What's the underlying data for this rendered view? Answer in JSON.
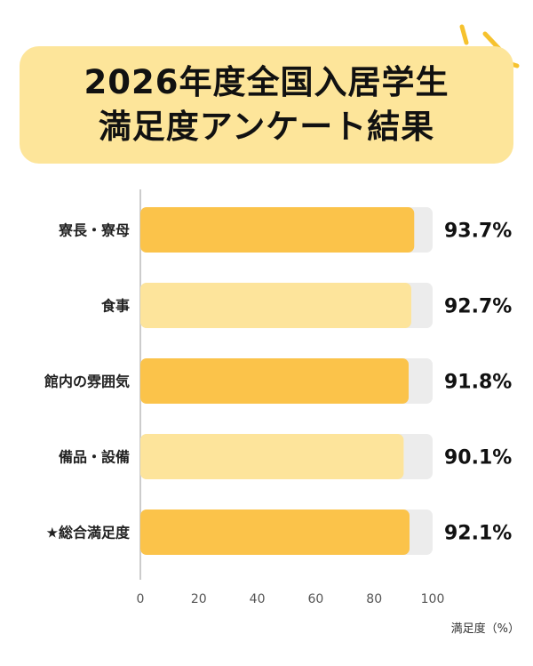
{
  "title_lines": [
    "2026年度全国入居学生",
    "満足度アンケート結果"
  ],
  "colors": {
    "title_bg": "#fde59a",
    "bar_dark": "#fbc34a",
    "bar_light": "#fde49b",
    "track": "#ececec",
    "axis": "#cccccc",
    "sparkle": "#f6c22e"
  },
  "chart_data": {
    "type": "bar",
    "orientation": "horizontal",
    "categories": [
      "寮長・寮母",
      "食事",
      "館内の雰囲気",
      "備品・設備",
      "★総合満足度"
    ],
    "values": [
      93.7,
      92.7,
      91.8,
      90.1,
      92.1
    ],
    "value_labels": [
      "93.7%",
      "92.7%",
      "91.8%",
      "90.1%",
      "92.1%"
    ],
    "xlim": [
      0,
      100
    ],
    "xticks": [
      0,
      20,
      40,
      60,
      80,
      100
    ],
    "xlabel": "満足度（%）",
    "ylabel": "",
    "grid": false
  }
}
